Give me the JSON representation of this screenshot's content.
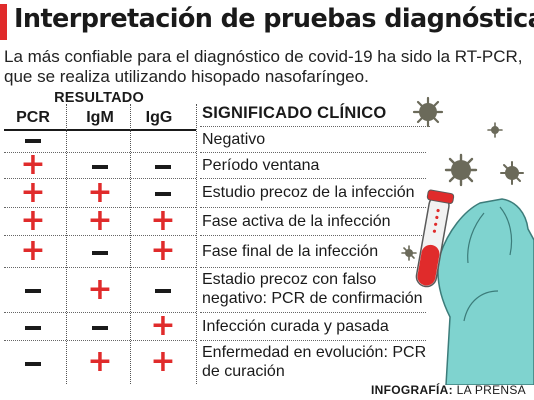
{
  "title": "Interpretación de pruebas diagnósticas",
  "intro": "La más confiable para el diagnóstico de covid-19 ha sido la RT-PCR, que se realiza utilizando hisopado nasofaríngeo.",
  "table": {
    "group_header": "RESULTADO",
    "columns": [
      "PCR",
      "IgM",
      "IgG"
    ],
    "meaning_header": "SIGNIFICADO CLÍNICO",
    "rows": [
      {
        "pcr": "−",
        "igm": "",
        "igg": "",
        "meaning": "Negativo"
      },
      {
        "pcr": "+",
        "igm": "−",
        "igg": "−",
        "meaning": "Período ventana"
      },
      {
        "pcr": "+",
        "igm": "+",
        "igg": "−",
        "meaning": "Estudio precoz de la infección"
      },
      {
        "pcr": "+",
        "igm": "+",
        "igg": "+",
        "meaning": "Fase activa de la infección"
      },
      {
        "pcr": "+",
        "igm": "−",
        "igg": "+",
        "meaning": "Fase final de la infección"
      },
      {
        "pcr": "−",
        "igm": "+",
        "igg": "−",
        "meaning": "Estadio precoz con falso negativo: PCR de confirmación"
      },
      {
        "pcr": "−",
        "igm": "−",
        "igg": "+",
        "meaning": "Infección curada y pasada"
      },
      {
        "pcr": "−",
        "igm": "+",
        "igg": "+",
        "meaning": "Enfermedad en evolución: PCR de curación"
      }
    ]
  },
  "credit": {
    "label": "INFOGRAFÍA:",
    "source": "LA PRENSA"
  },
  "colors": {
    "plus": "#e02b2b",
    "minus": "#1a1a1a",
    "glove": "#7fd3cf",
    "virus": "#6b6a5a"
  },
  "icons": [
    "virus-icon",
    "gloved-hand-icon",
    "test-tube-icon"
  ]
}
